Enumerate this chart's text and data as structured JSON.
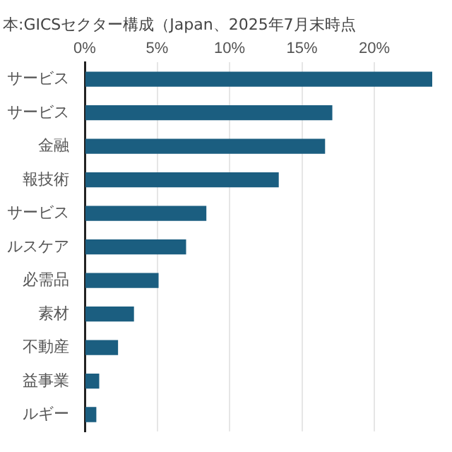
{
  "chart_data": {
    "type": "bar",
    "orientation": "horizontal",
    "title": "本:GICSセクター構成（Japan、2025年7月末時点",
    "categories": [
      "サービス",
      "サービス",
      "金融",
      "報技術",
      "サービス",
      "ルスケア",
      "必需品",
      "素材",
      "不動産",
      "益事業",
      "ルギー"
    ],
    "values": [
      24,
      17.1,
      16.6,
      13.4,
      8.4,
      7.0,
      5.1,
      3.4,
      2.3,
      1.0,
      0.8
    ],
    "color": "#1b5e80",
    "xlim": [
      0,
      24
    ],
    "xticks": [
      {
        "value": 0,
        "label": "0%"
      },
      {
        "value": 5,
        "label": "5%"
      },
      {
        "value": 10,
        "label": "10%"
      },
      {
        "value": 15,
        "label": "15%"
      },
      {
        "value": 20,
        "label": "20%"
      }
    ],
    "grid": "x",
    "legend": false
  }
}
